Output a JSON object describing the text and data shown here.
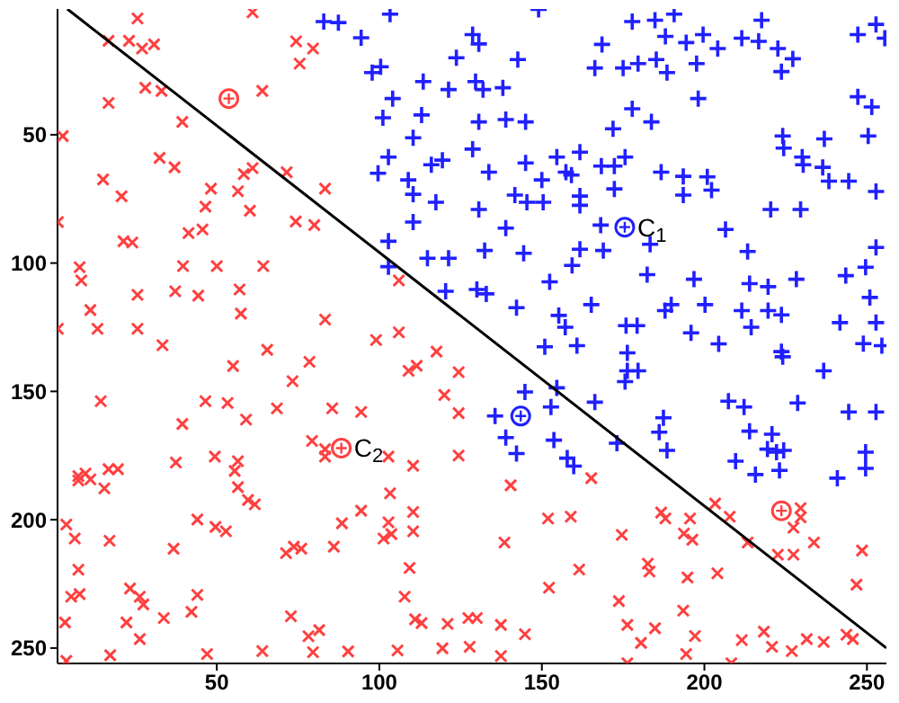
{
  "chart_data": {
    "type": "scatter",
    "xlim": [
      1,
      256
    ],
    "ylim": [
      256,
      1
    ],
    "xticks": [
      50,
      100,
      150,
      200,
      250
    ],
    "yticks": [
      50,
      100,
      150,
      200,
      250
    ],
    "grid": false,
    "legend": false,
    "series": [
      {
        "type": "scatter",
        "marker": "x",
        "color": "#ff4040",
        "x": [
          25.6,
          61,
          16.7,
          23,
          27,
          30.7,
          74.4,
          79.6,
          75.5,
          28,
          33,
          16.7,
          64,
          39.4,
          2.6,
          32.4,
          37,
          15,
          61,
          58.3,
          71.5,
          48.2,
          56.5,
          83.3,
          20.7,
          46.5,
          60.2,
          1.1,
          74.3,
          80,
          41.3,
          45.6,
          21.3,
          24,
          7.8,
          8.3,
          39.6,
          50,
          64.3,
          37.2,
          44.3,
          25.6,
          57,
          11.1,
          57.4,
          83.3,
          1.1,
          13.3,
          25.6,
          106,
          33.3,
          65.5,
          99,
          106,
          117.6,
          55,
          78.5,
          109,
          111.5,
          14.3,
          73.3,
          46.5,
          53.3,
          39.4,
          59,
          68.5,
          85.5,
          94.4,
          120,
          79.3,
          83.3,
          83.3,
          102.8,
          110.4,
          37.4,
          49.4,
          56.5,
          55.5,
          56.5,
          59.6,
          61.7,
          103.3,
          7.4,
          9.6,
          11.1,
          7.4,
          16.7,
          19.6,
          15.4,
          3.7,
          6.3,
          17,
          44,
          49.6,
          52.8,
          36.7,
          88.5,
          94.4,
          86,
          73.7,
          76,
          71.3,
          101.3,
          102.8,
          103.7,
          110.4,
          110.4,
          7.4,
          23.3,
          26.3,
          27.4,
          5.2,
          7.8,
          22.2,
          3.3,
          33.7,
          42.2,
          44,
          26.3,
          17.2,
          47,
          3.7,
          64,
          72.8,
          78.2,
          81.5,
          79.6,
          90.4,
          107.8,
          109.3,
          111,
          113,
          105.6,
          119.4,
          121,
          124.4,
          124.4,
          124.4,
          140.4,
          165.2,
          151.9,
          158.9,
          138.5,
          161.5,
          152.2,
          174.6,
          186.7,
          188,
          195.6,
          193.7,
          196.3,
          182.6,
          183.1,
          194.8,
          204,
          203.3,
          207.8,
          213.3,
          229.6,
          229.6,
          227.4,
          233.7,
          222.6,
          227.4,
          248.5,
          246.8,
          173.7,
          127.4,
          130,
          137.4,
          144.8,
          127.8,
          137.4,
          176.3,
          180.5,
          184.8,
          193.5,
          197.1,
          194.4,
          208.3,
          176.3,
          211.5,
          218.3,
          220.8,
          226.9,
          231.5,
          236.7,
          243.7,
          245.7
        ],
        "values": [
          4.7,
          2.3,
          13.4,
          13.4,
          16.4,
          14.8,
          13.6,
          16.4,
          22.3,
          31.7,
          32.9,
          37.6,
          32.9,
          45,
          50.5,
          59,
          62.7,
          67.4,
          63,
          65.3,
          64.6,
          71,
          72,
          71,
          74,
          78,
          79.6,
          84,
          83.8,
          85.2,
          88.3,
          86.9,
          91.5,
          92,
          101.6,
          106.8,
          101.2,
          101.2,
          101.2,
          111,
          112.7,
          112.4,
          110.3,
          118.3,
          119.7,
          122,
          125.6,
          125.6,
          125.6,
          106.8,
          132,
          133.8,
          130,
          127,
          134.5,
          140.1,
          138.5,
          142,
          140,
          153.8,
          146,
          153.8,
          154.5,
          162.7,
          161,
          156.6,
          156.6,
          158,
          151.4,
          169.3,
          172.5,
          175.4,
          175.4,
          179,
          177.7,
          175.4,
          177.2,
          181,
          187.3,
          192.3,
          194,
          189.7,
          183,
          182,
          184.3,
          184.7,
          180.3,
          180.3,
          187.8,
          201.9,
          207.3,
          208.2,
          199.9,
          202.8,
          204.5,
          211.3,
          201.4,
          196.5,
          210.5,
          210.5,
          211.3,
          213,
          207.3,
          201,
          205.6,
          197,
          204.5,
          219.5,
          226.8,
          230,
          233,
          230,
          229,
          240,
          240,
          238.3,
          235.9,
          229.3,
          246.5,
          252.8,
          252.3,
          255,
          251.2,
          237.6,
          245.4,
          243,
          251.6,
          251.3,
          230,
          218.8,
          238.8,
          240.3,
          250.9,
          250.1,
          240.6,
          142.5,
          158.5,
          175,
          186.6,
          183.8,
          199.5,
          198.8,
          208.9,
          219.4,
          226.5,
          205.9,
          197.2,
          199.5,
          199.5,
          205.4,
          207.8,
          217.1,
          220.2,
          222.5,
          220.9,
          193.7,
          198.8,
          208.9,
          195.5,
          199.1,
          203.1,
          208.9,
          213.6,
          213.6,
          212,
          225.3,
          231.7,
          238.3,
          238.3,
          241,
          244.6,
          249.5,
          253.1,
          241,
          248,
          242.3,
          235.4,
          245.3,
          252.3,
          255.9,
          255.9,
          246.9,
          243.6,
          249.5,
          251.2,
          246.5,
          247.6,
          244.8,
          246.5
        ]
      },
      {
        "type": "scatter",
        "marker": "plus",
        "color": "#2020ff",
        "x": [
          82.9,
          87.4,
          94.4,
          103.3,
          97.8,
          100.4,
          113.5,
          121.3,
          104.1,
          101.1,
          113,
          110.4,
          102.8,
          99.6,
          108.9,
          116,
          119.4,
          110.4,
          117.4,
          110.4,
          102.8,
          102.8,
          114.8,
          121.3,
          120.4,
          149,
          177.8,
          184.8,
          190.7,
          188,
          194.4,
          199.6,
          204.1,
          211.5,
          216.7,
          217.6,
          222.6,
          227.2,
          223.7,
          247.2,
          252.8,
          255.5,
          168.5,
          166.3,
          175,
          179.6,
          185.2,
          188.5,
          197.6,
          198.1,
          177.8,
          183.7,
          171.9,
          128.7,
          130.6,
          123.7,
          142.6,
          129.6,
          131.9,
          138,
          130.6,
          138.9,
          145,
          128.7,
          133.7,
          145,
          154.6,
          161.7,
          157.4,
          150,
          159.1,
          168.3,
          172.3,
          175.6,
          172.3,
          186.7,
          193.5,
          200.9,
          202.2,
          193.5,
          141.7,
          145.4,
          150.4,
          161.7,
          161.7,
          130.6,
          138.9,
          132.4,
          144.4,
          159.3,
          161.7,
          168.9,
          168.1,
          183.3,
          182.4,
          196.8,
          206.5,
          213.3,
          213.9,
          219.6,
          220.4,
          229.6,
          228.3,
          224.1,
          224.4,
          230.1,
          230.4,
          236.9,
          236.4,
          238.3,
          244.4,
          250.4,
          252.8,
          247.2,
          251.5,
          243.5,
          249.6,
          252.8,
          250.9,
          241.7,
          252.8,
          248.9,
          254.6,
          130,
          132.9,
          142.2,
          152.4,
          155.2,
          157.2,
          165.2,
          175.9,
          179.3,
          187.9,
          189.8,
          195.9,
          200.2,
          204.4,
          211.5,
          214.4,
          219.6,
          223.7,
          223.7,
          150.9,
          160.8,
          176.3,
          176.3,
          179.6,
          175.6,
          224.1,
          236.7,
          207.4,
          212.2,
          228.7,
          244.4,
          252.8,
          213.9,
          220.8,
          219.4,
          222.2,
          224.4,
          209.6,
          215.7,
          223.1,
          240.9,
          249.6,
          249.6,
          187.4,
          186.1,
          188.5,
          173.1,
          144.8,
          154.6,
          166.3,
          152.8,
          135.6,
          138.9,
          142.2,
          153.7,
          157.8,
          159.8
        ],
        "values": [
          5.9,
          6.3,
          12.2,
          3,
          25.8,
          23.5,
          29.3,
          32.4,
          35.9,
          43.4,
          42.3,
          51.2,
          58.7,
          65,
          67.6,
          61.7,
          59.9,
          73.2,
          76.3,
          84,
          91.5,
          101.4,
          98.1,
          98.1,
          111,
          1.2,
          5.9,
          5.4,
          3,
          11.7,
          14.1,
          11,
          16.4,
          12.4,
          13.6,
          5.4,
          16.4,
          20.4,
          25.4,
          11,
          7,
          12.4,
          14.8,
          24,
          24,
          22.3,
          20.7,
          25.8,
          22.3,
          35.9,
          39.9,
          45,
          47.7,
          11,
          14.6,
          20,
          20.7,
          29.3,
          32.4,
          31.7,
          45,
          44.1,
          45,
          55.6,
          64.6,
          61,
          58.7,
          56.8,
          64.6,
          67.6,
          65.7,
          62.2,
          62.2,
          58.7,
          71.1,
          64.6,
          66.2,
          66.4,
          71.6,
          73.5,
          73.5,
          76.3,
          76.3,
          73.9,
          77.5,
          79.1,
          86.4,
          95.1,
          96.2,
          100.9,
          94.6,
          95.1,
          85.2,
          92.7,
          104.5,
          106.3,
          86.9,
          95.5,
          108,
          109.2,
          79.1,
          79.1,
          106.3,
          50.5,
          55.2,
          58.7,
          61.7,
          51.6,
          62.7,
          68.1,
          68.1,
          50.5,
          72.1,
          35.2,
          39.2,
          104.9,
          101.6,
          93.9,
          113.4,
          123.2,
          123.2,
          131.4,
          132.2,
          110.3,
          112,
          117.4,
          107.3,
          120.4,
          125,
          116.2,
          124.4,
          124.4,
          118.5,
          116.2,
          127.2,
          116.2,
          131.5,
          118.5,
          125,
          118.5,
          120.2,
          134.5,
          132.6,
          132.2,
          135,
          142,
          142,
          146.2,
          136.5,
          142,
          153.8,
          156.1,
          154.5,
          158,
          158,
          165.5,
          166.7,
          172.5,
          173.7,
          173,
          177.2,
          182.4,
          180.8,
          183.8,
          173.7,
          180,
          160.3,
          165.9,
          173,
          170.2,
          150.2,
          148.6,
          154.2,
          156.1,
          159.6,
          168,
          174.2,
          169,
          176,
          179.1
        ]
      },
      {
        "type": "scatter",
        "marker": "circle",
        "color": "#ff4040",
        "x": [
          53.7,
          88.3,
          223.7
        ],
        "values": [
          35.9,
          172.1,
          196.5
        ]
      },
      {
        "type": "scatter",
        "marker": "circle",
        "color": "#2020ff",
        "x": [
          175.5,
          143.5
        ],
        "values": [
          86,
          159.6
        ]
      },
      {
        "type": "line",
        "marker": "none",
        "line_style": "solid",
        "color": "#000000",
        "x": [
          4,
          256
        ],
        "values": [
          1,
          250
        ]
      }
    ],
    "annotations": [
      {
        "text": "C$_{1}$",
        "x": 175.5,
        "y": 86
      },
      {
        "text": "C$_{2}$",
        "x": 88.3,
        "y": 172.1
      }
    ]
  }
}
